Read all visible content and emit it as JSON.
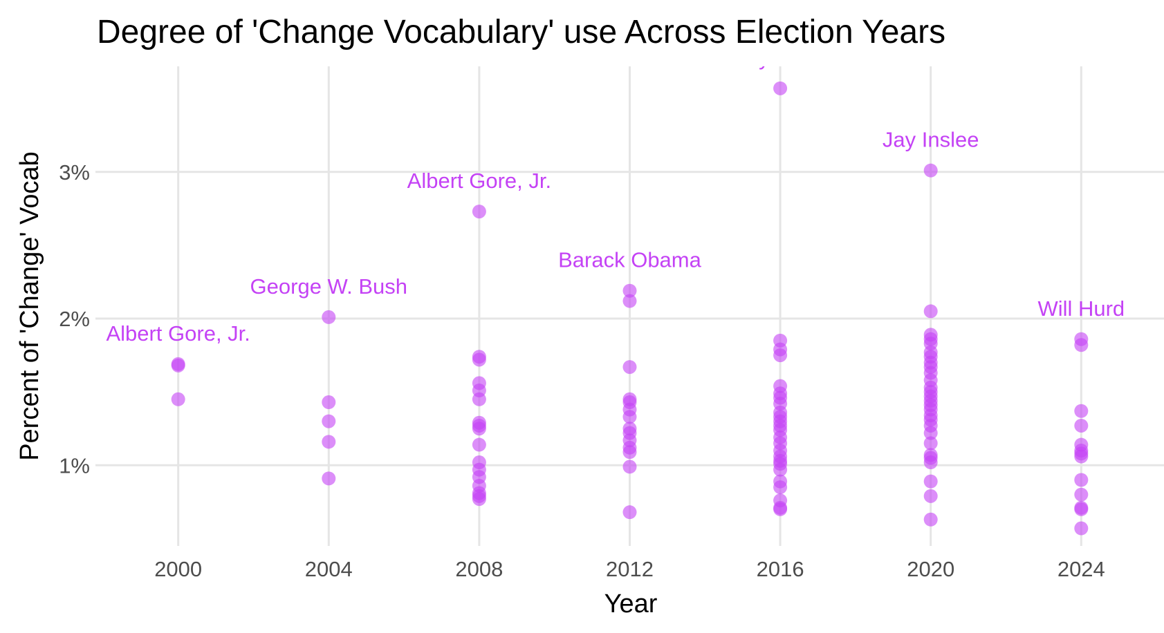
{
  "chart_data": {
    "type": "scatter",
    "title": "Degree of 'Change Vocabulary' use Across Election Years",
    "xlabel": "Year",
    "ylabel": "Percent of 'Change' Vocab",
    "xlim": [
      1997.8,
      2026.2
    ],
    "ylim": [
      0.45,
      3.72
    ],
    "x_ticks": [
      2000,
      2004,
      2008,
      2012,
      2016,
      2020,
      2024
    ],
    "x_tick_labels": [
      "2000",
      "2004",
      "2008",
      "2012",
      "2016",
      "2020",
      "2024"
    ],
    "y_ticks": [
      1,
      2,
      3
    ],
    "y_tick_labels": [
      "1%",
      "2%",
      "3%"
    ],
    "grid": true,
    "legend": "none",
    "point_color": "#c442f5",
    "label_color": "#c442f5",
    "series": [
      {
        "points": [
          {
            "x": 2000,
            "y": 1.69
          },
          {
            "x": 2000,
            "y": 1.68
          },
          {
            "x": 2000,
            "y": 1.45
          },
          {
            "x": 2004,
            "y": 2.01
          },
          {
            "x": 2004,
            "y": 1.43
          },
          {
            "x": 2004,
            "y": 1.3
          },
          {
            "x": 2004,
            "y": 1.16
          },
          {
            "x": 2004,
            "y": 0.91
          },
          {
            "x": 2008,
            "y": 2.73
          },
          {
            "x": 2008,
            "y": 1.74
          },
          {
            "x": 2008,
            "y": 1.72
          },
          {
            "x": 2008,
            "y": 1.56
          },
          {
            "x": 2008,
            "y": 1.51
          },
          {
            "x": 2008,
            "y": 1.45
          },
          {
            "x": 2008,
            "y": 1.29
          },
          {
            "x": 2008,
            "y": 1.27
          },
          {
            "x": 2008,
            "y": 1.25
          },
          {
            "x": 2008,
            "y": 1.14
          },
          {
            "x": 2008,
            "y": 1.02
          },
          {
            "x": 2008,
            "y": 0.97
          },
          {
            "x": 2008,
            "y": 0.92
          },
          {
            "x": 2008,
            "y": 0.86
          },
          {
            "x": 2008,
            "y": 0.81
          },
          {
            "x": 2008,
            "y": 0.79
          },
          {
            "x": 2008,
            "y": 0.77
          },
          {
            "x": 2012,
            "y": 2.19
          },
          {
            "x": 2012,
            "y": 2.12
          },
          {
            "x": 2012,
            "y": 1.67
          },
          {
            "x": 2012,
            "y": 1.45
          },
          {
            "x": 2012,
            "y": 1.43
          },
          {
            "x": 2012,
            "y": 1.38
          },
          {
            "x": 2012,
            "y": 1.33
          },
          {
            "x": 2012,
            "y": 1.25
          },
          {
            "x": 2012,
            "y": 1.22
          },
          {
            "x": 2012,
            "y": 1.17
          },
          {
            "x": 2012,
            "y": 1.12
          },
          {
            "x": 2012,
            "y": 1.09
          },
          {
            "x": 2012,
            "y": 0.99
          },
          {
            "x": 2012,
            "y": 0.68
          },
          {
            "x": 2016,
            "y": 3.57
          },
          {
            "x": 2016,
            "y": 1.85
          },
          {
            "x": 2016,
            "y": 1.79
          },
          {
            "x": 2016,
            "y": 1.75
          },
          {
            "x": 2016,
            "y": 1.54
          },
          {
            "x": 2016,
            "y": 1.49
          },
          {
            "x": 2016,
            "y": 1.46
          },
          {
            "x": 2016,
            "y": 1.42
          },
          {
            "x": 2016,
            "y": 1.36
          },
          {
            "x": 2016,
            "y": 1.33
          },
          {
            "x": 2016,
            "y": 1.3
          },
          {
            "x": 2016,
            "y": 1.27
          },
          {
            "x": 2016,
            "y": 1.24
          },
          {
            "x": 2016,
            "y": 1.19
          },
          {
            "x": 2016,
            "y": 1.15
          },
          {
            "x": 2016,
            "y": 1.1
          },
          {
            "x": 2016,
            "y": 1.06
          },
          {
            "x": 2016,
            "y": 1.03
          },
          {
            "x": 2016,
            "y": 1.01
          },
          {
            "x": 2016,
            "y": 0.97
          },
          {
            "x": 2016,
            "y": 0.89
          },
          {
            "x": 2016,
            "y": 0.85
          },
          {
            "x": 2016,
            "y": 0.76
          },
          {
            "x": 2016,
            "y": 0.71
          },
          {
            "x": 2016,
            "y": 0.7
          },
          {
            "x": 2020,
            "y": 3.01
          },
          {
            "x": 2020,
            "y": 2.05
          },
          {
            "x": 2020,
            "y": 1.89
          },
          {
            "x": 2020,
            "y": 1.86
          },
          {
            "x": 2020,
            "y": 1.83
          },
          {
            "x": 2020,
            "y": 1.77
          },
          {
            "x": 2020,
            "y": 1.74
          },
          {
            "x": 2020,
            "y": 1.7
          },
          {
            "x": 2020,
            "y": 1.67
          },
          {
            "x": 2020,
            "y": 1.63
          },
          {
            "x": 2020,
            "y": 1.58
          },
          {
            "x": 2020,
            "y": 1.53
          },
          {
            "x": 2020,
            "y": 1.5
          },
          {
            "x": 2020,
            "y": 1.47
          },
          {
            "x": 2020,
            "y": 1.44
          },
          {
            "x": 2020,
            "y": 1.41
          },
          {
            "x": 2020,
            "y": 1.38
          },
          {
            "x": 2020,
            "y": 1.34
          },
          {
            "x": 2020,
            "y": 1.31
          },
          {
            "x": 2020,
            "y": 1.27
          },
          {
            "x": 2020,
            "y": 1.22
          },
          {
            "x": 2020,
            "y": 1.15
          },
          {
            "x": 2020,
            "y": 1.07
          },
          {
            "x": 2020,
            "y": 1.05
          },
          {
            "x": 2020,
            "y": 1.02
          },
          {
            "x": 2020,
            "y": 0.89
          },
          {
            "x": 2020,
            "y": 0.79
          },
          {
            "x": 2020,
            "y": 0.63
          },
          {
            "x": 2024,
            "y": 1.86
          },
          {
            "x": 2024,
            "y": 1.82
          },
          {
            "x": 2024,
            "y": 1.37
          },
          {
            "x": 2024,
            "y": 1.27
          },
          {
            "x": 2024,
            "y": 1.14
          },
          {
            "x": 2024,
            "y": 1.1
          },
          {
            "x": 2024,
            "y": 1.08
          },
          {
            "x": 2024,
            "y": 1.06
          },
          {
            "x": 2024,
            "y": 0.9
          },
          {
            "x": 2024,
            "y": 0.8
          },
          {
            "x": 2024,
            "y": 0.71
          },
          {
            "x": 2024,
            "y": 0.7
          },
          {
            "x": 2024,
            "y": 0.57
          }
        ]
      }
    ],
    "annotations": [
      {
        "text": "Albert Gore, Jr.",
        "x": 2000,
        "y": 1.69
      },
      {
        "text": "George W. Bush",
        "x": 2004,
        "y": 2.01
      },
      {
        "text": "Albert Gore, Jr.",
        "x": 2008,
        "y": 2.73
      },
      {
        "text": "Barack Obama",
        "x": 2012,
        "y": 2.19
      },
      {
        "text": "Carly Fiorina",
        "x": 2016,
        "y": 3.57
      },
      {
        "text": "Jay Inslee",
        "x": 2020,
        "y": 3.01
      },
      {
        "text": "Will Hurd",
        "x": 2024,
        "y": 1.86
      }
    ]
  }
}
